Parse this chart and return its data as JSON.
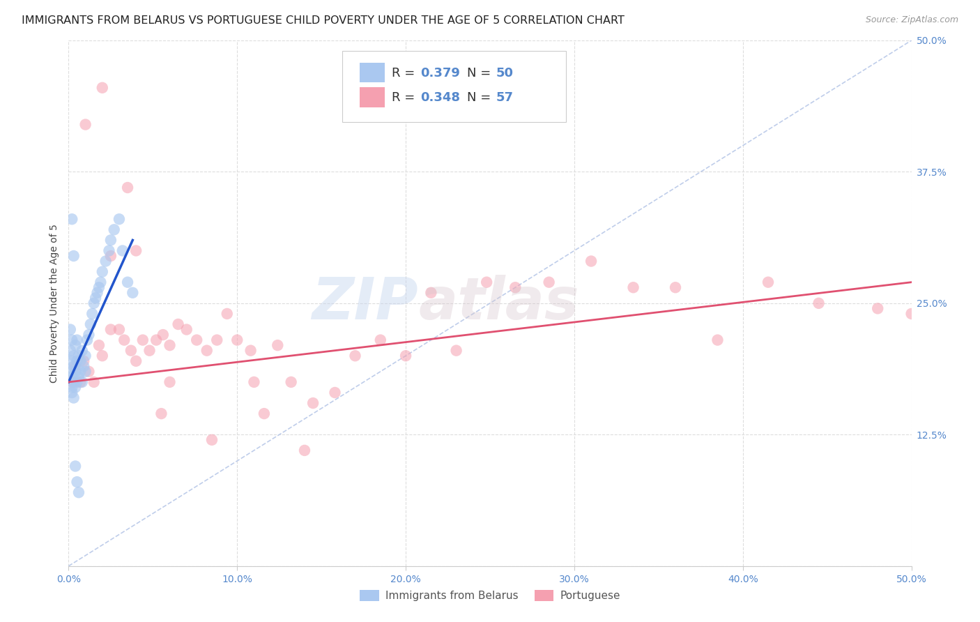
{
  "title": "IMMIGRANTS FROM BELARUS VS PORTUGUESE CHILD POVERTY UNDER THE AGE OF 5 CORRELATION CHART",
  "source": "Source: ZipAtlas.com",
  "ylabel": "Child Poverty Under the Age of 5",
  "xlim": [
    0.0,
    0.5
  ],
  "ylim": [
    0.0,
    0.5
  ],
  "xticks": [
    0.0,
    0.1,
    0.2,
    0.3,
    0.4,
    0.5
  ],
  "yticks": [
    0.0,
    0.125,
    0.25,
    0.375,
    0.5
  ],
  "xticklabels": [
    "0.0%",
    "10.0%",
    "20.0%",
    "30.0%",
    "40.0%",
    "50.0%"
  ],
  "yticklabels": [
    "",
    "12.5%",
    "25.0%",
    "37.5%",
    "50.0%"
  ],
  "blue_scatter_x": [
    0.001,
    0.001,
    0.001,
    0.002,
    0.002,
    0.002,
    0.002,
    0.002,
    0.003,
    0.003,
    0.003,
    0.003,
    0.004,
    0.004,
    0.004,
    0.005,
    0.005,
    0.005,
    0.006,
    0.006,
    0.007,
    0.007,
    0.008,
    0.008,
    0.009,
    0.01,
    0.01,
    0.011,
    0.012,
    0.013,
    0.014,
    0.015,
    0.016,
    0.017,
    0.018,
    0.019,
    0.02,
    0.022,
    0.024,
    0.025,
    0.027,
    0.03,
    0.032,
    0.035,
    0.038,
    0.002,
    0.003,
    0.004,
    0.005,
    0.006
  ],
  "blue_scatter_y": [
    0.185,
    0.205,
    0.225,
    0.17,
    0.195,
    0.215,
    0.165,
    0.18,
    0.2,
    0.175,
    0.19,
    0.16,
    0.185,
    0.17,
    0.21,
    0.195,
    0.175,
    0.215,
    0.18,
    0.2,
    0.185,
    0.195,
    0.175,
    0.205,
    0.19,
    0.185,
    0.2,
    0.215,
    0.22,
    0.23,
    0.24,
    0.25,
    0.255,
    0.26,
    0.265,
    0.27,
    0.28,
    0.29,
    0.3,
    0.31,
    0.32,
    0.33,
    0.3,
    0.27,
    0.26,
    0.33,
    0.295,
    0.095,
    0.08,
    0.07
  ],
  "pink_scatter_x": [
    0.002,
    0.004,
    0.007,
    0.009,
    0.012,
    0.015,
    0.018,
    0.02,
    0.025,
    0.03,
    0.033,
    0.037,
    0.04,
    0.044,
    0.048,
    0.052,
    0.056,
    0.06,
    0.065,
    0.07,
    0.076,
    0.082,
    0.088,
    0.094,
    0.1,
    0.108,
    0.116,
    0.124,
    0.132,
    0.145,
    0.158,
    0.17,
    0.185,
    0.2,
    0.215,
    0.23,
    0.248,
    0.265,
    0.285,
    0.31,
    0.335,
    0.36,
    0.385,
    0.415,
    0.445,
    0.48,
    0.5,
    0.025,
    0.04,
    0.055,
    0.01,
    0.02,
    0.035,
    0.06,
    0.085,
    0.11,
    0.14
  ],
  "pink_scatter_y": [
    0.175,
    0.19,
    0.175,
    0.195,
    0.185,
    0.175,
    0.21,
    0.2,
    0.225,
    0.225,
    0.215,
    0.205,
    0.195,
    0.215,
    0.205,
    0.215,
    0.22,
    0.21,
    0.23,
    0.225,
    0.215,
    0.205,
    0.215,
    0.24,
    0.215,
    0.205,
    0.145,
    0.21,
    0.175,
    0.155,
    0.165,
    0.2,
    0.215,
    0.2,
    0.26,
    0.205,
    0.27,
    0.265,
    0.27,
    0.29,
    0.265,
    0.265,
    0.215,
    0.27,
    0.25,
    0.245,
    0.24,
    0.295,
    0.3,
    0.145,
    0.42,
    0.455,
    0.36,
    0.175,
    0.12,
    0.175,
    0.11
  ],
  "blue_line_x": [
    0.0,
    0.038
  ],
  "blue_line_y": [
    0.175,
    0.31
  ],
  "pink_line_x": [
    0.0,
    0.5
  ],
  "pink_line_y": [
    0.175,
    0.27
  ],
  "ref_line_x": [
    0.0,
    0.5
  ],
  "ref_line_y": [
    0.0,
    0.5
  ],
  "blue_color": "#aac8f0",
  "pink_color": "#f5a0b0",
  "blue_line_color": "#2255cc",
  "pink_line_color": "#e05070",
  "ref_line_color": "#b8c8e8",
  "watermark_zip": "ZIP",
  "watermark_atlas": "atlas",
  "background_color": "#ffffff",
  "grid_color": "#dddddd",
  "tick_color": "#5588cc",
  "title_fontsize": 11.5,
  "axis_label_fontsize": 10,
  "tick_fontsize": 10,
  "legend_R1": "0.379",
  "legend_N1": "50",
  "legend_R2": "0.348",
  "legend_N2": "57",
  "legend_label1": "Immigrants from Belarus",
  "legend_label2": "Portuguese"
}
